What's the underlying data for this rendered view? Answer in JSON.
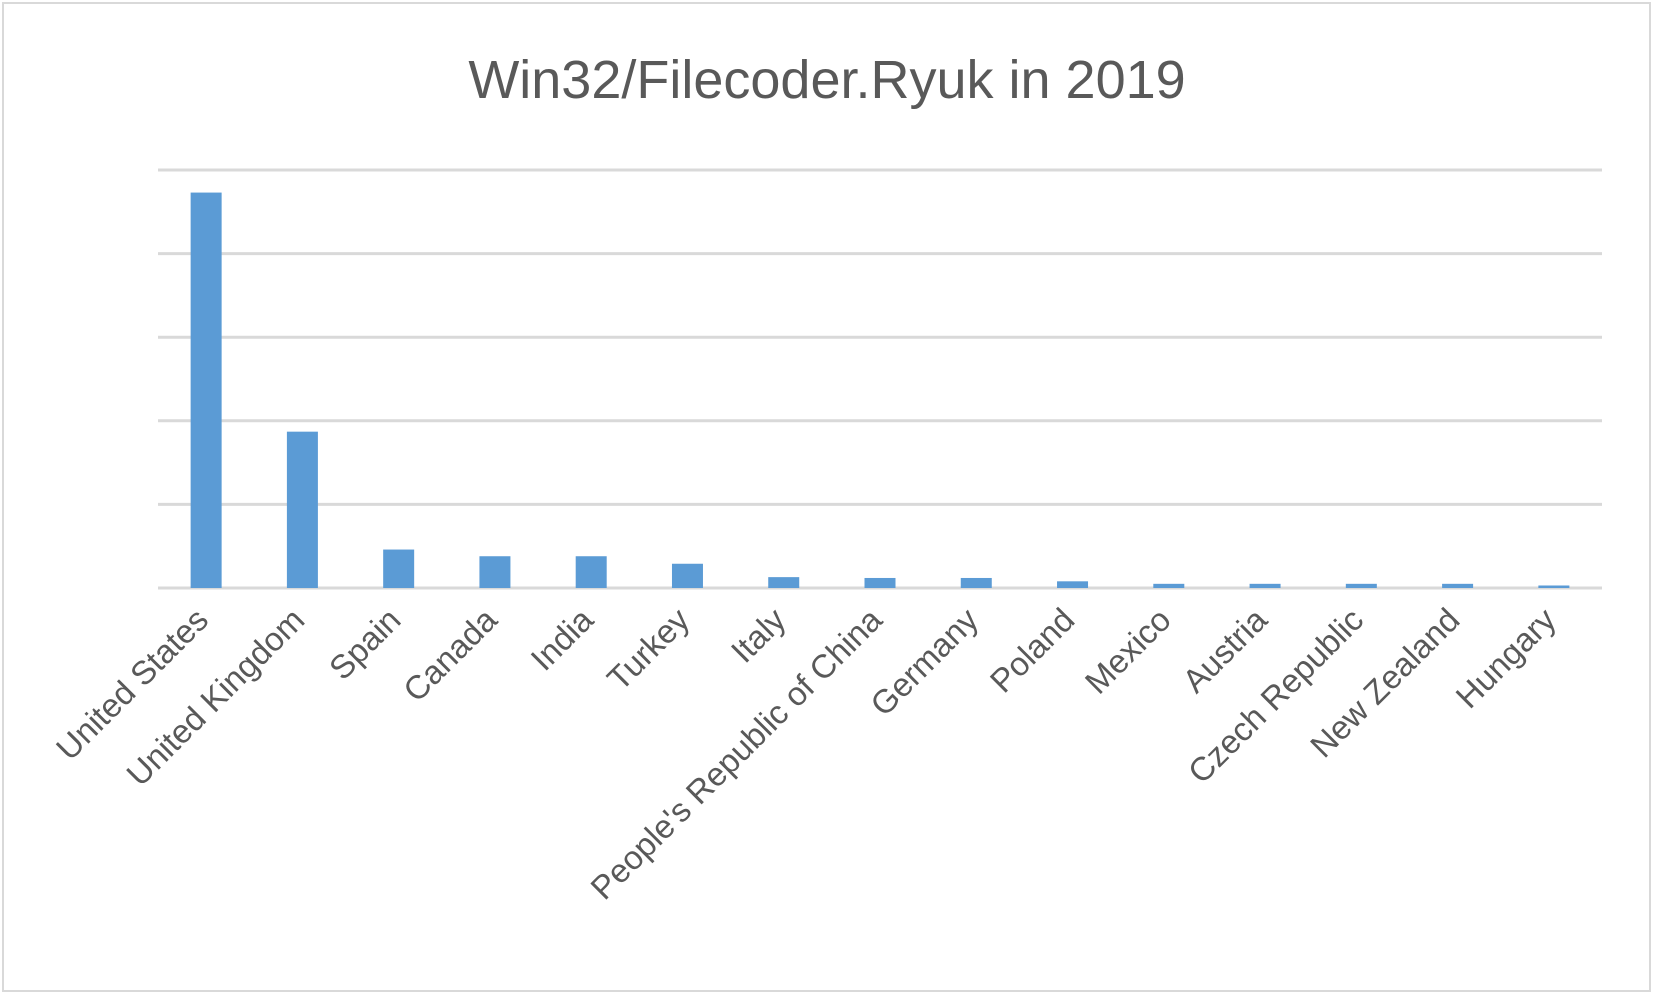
{
  "chart_data": {
    "type": "bar",
    "title": "Win32/Filecoder.Ryuk in 2019",
    "xlabel": "",
    "ylabel": "",
    "categories": [
      "United States",
      "United Kingdom",
      "Spain",
      "Canada",
      "India",
      "Turkey",
      "Italy",
      "People's Republic of China",
      "Germany",
      "Poland",
      "Mexico",
      "Austria",
      "Czech Republic",
      "New Zealand",
      "Hungary"
    ],
    "values": [
      47.3,
      18.7,
      4.6,
      3.8,
      3.8,
      2.9,
      1.3,
      1.2,
      1.2,
      0.8,
      0.5,
      0.5,
      0.5,
      0.5,
      0.3
    ],
    "ylim": [
      0,
      50
    ],
    "y_tick_labels_visible": false,
    "grid": true,
    "legend": "none",
    "colors": {
      "bar": "#5b9bd5",
      "grid": "#d9d9d9",
      "text": "#595959",
      "border": "#d9d9d9"
    }
  }
}
